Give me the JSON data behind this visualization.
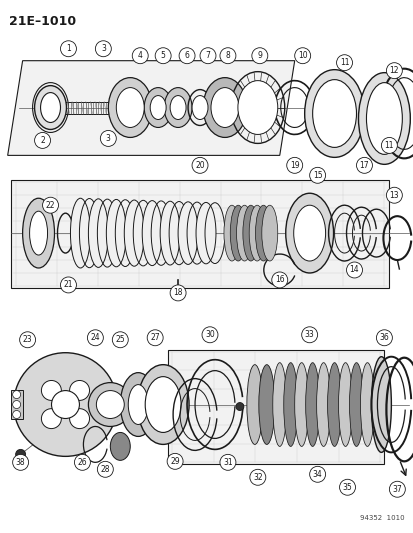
{
  "title": "21E–1010",
  "watermark": "94352  1010",
  "bg_color": "#ffffff",
  "line_color": "#1a1a1a",
  "fig_width": 4.14,
  "fig_height": 5.33,
  "dpi": 100
}
